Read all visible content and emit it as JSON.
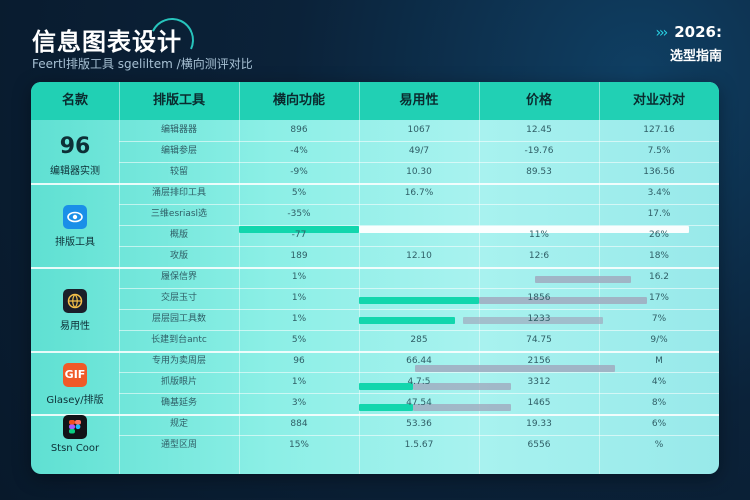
{
  "header": {
    "title": "信息图表设计",
    "subtitle": "Feertl排版工具 sgeliltem /横向测评对比",
    "badge_arrows": "›››",
    "badge_year": "2026:",
    "badge_guide": "选型指南"
  },
  "table": {
    "columns": [
      "名款",
      "排版工具",
      "横向功能",
      "易用性",
      "价格",
      "对业对对"
    ],
    "groups": [
      {
        "label": "编辑器实测",
        "big": "96",
        "icon": "",
        "rows": [
          [
            "编辑器器",
            "896",
            "1067",
            "12.45",
            "127.16"
          ],
          [
            "编辑参层",
            "-4%",
            "49/7",
            "-19.76",
            "7.5%"
          ],
          [
            "较留",
            "-9%",
            "10.30",
            "89.53",
            "136.56"
          ]
        ]
      },
      {
        "label": "排版工具",
        "big": "",
        "icon": "eye-icon",
        "rows": [
          [
            "涌层排印工具",
            "5%",
            "16.7%",
            "",
            "3.4%"
          ],
          [
            "三维esriasl选",
            "-35%",
            "",
            "",
            "17.%"
          ],
          [
            "概版",
            "-77",
            "",
            "11%",
            "26%"
          ],
          [
            "攻版",
            "189",
            "12.10",
            "12:6",
            "18%"
          ]
        ]
      },
      {
        "label": "易用性",
        "big": "",
        "icon": "globe-icon",
        "rows": [
          [
            "履保信界",
            "1%",
            "",
            "",
            "16.2"
          ],
          [
            "交层玉寸",
            "1%",
            "",
            "1856",
            "17%"
          ],
          [
            "层层园工具数",
            "1%",
            "",
            "1233",
            "7%"
          ],
          [
            "长建到台antc",
            "5%",
            "285",
            "74.75",
            "9/%"
          ]
        ]
      },
      {
        "label": "Glasey/排版",
        "big": "",
        "icon": "gif-icon",
        "rows": [
          [
            "专用为卖周层",
            "96",
            "66.44",
            "2156",
            "M"
          ],
          [
            "抓版眼片",
            "1%",
            "4.7:5",
            "3312",
            "4%"
          ],
          [
            "确基延务",
            "3%",
            "47.54",
            "1465",
            "8%"
          ]
        ]
      },
      {
        "label": "Stsn Coor",
        "big": "",
        "icon": "figma-icon",
        "rows": [
          [
            "规定",
            "884",
            "53.36",
            "19.33",
            "6%"
          ],
          [
            "通型区周",
            "15%",
            "1.5.67",
            "6556",
            "%"
          ]
        ]
      }
    ]
  }
}
